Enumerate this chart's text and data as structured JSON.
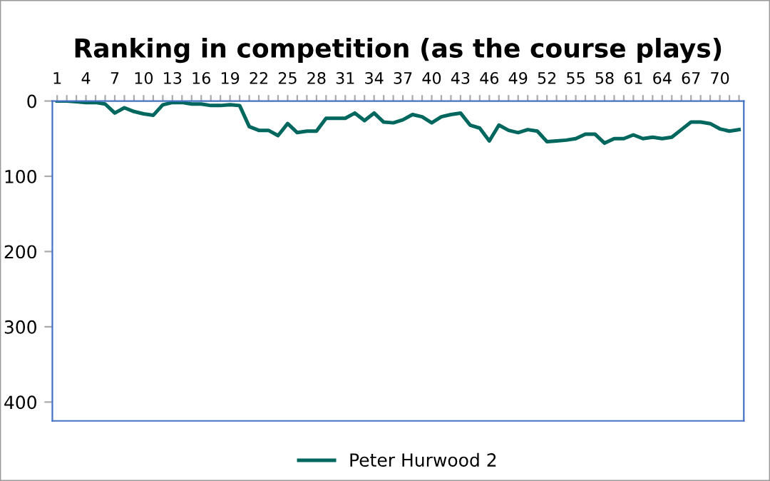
{
  "chart_data": {
    "type": "line",
    "title": "Ranking in competition (as the course plays)",
    "categories": [
      "1",
      null,
      null,
      "4",
      null,
      null,
      "7",
      null,
      null,
      "10",
      null,
      null,
      "13",
      null,
      null,
      "16",
      null,
      null,
      "19",
      null,
      null,
      "22",
      null,
      null,
      "25",
      null,
      null,
      "28",
      null,
      null,
      "31",
      null,
      null,
      "34",
      null,
      null,
      "37",
      null,
      null,
      "40",
      null,
      null,
      "43",
      null,
      null,
      "46",
      null,
      null,
      "49",
      null,
      null,
      "52",
      null,
      null,
      "55",
      null,
      null,
      "58",
      null,
      null,
      "61",
      null,
      null,
      "64",
      null,
      null,
      "67",
      null,
      null,
      "70",
      null,
      null
    ],
    "series": [
      {
        "name": "Peter Hurwood 2",
        "color": "#00675e",
        "values": [
          0,
          0,
          1,
          2,
          2,
          4,
          16,
          9,
          14,
          17,
          19,
          5,
          2,
          2,
          4,
          4,
          6,
          6,
          5,
          6,
          34,
          39,
          39,
          46,
          30,
          42,
          40,
          40,
          23,
          23,
          23,
          16,
          26,
          16,
          28,
          29,
          25,
          18,
          21,
          29,
          21,
          18,
          16,
          32,
          36,
          53,
          32,
          39,
          42,
          38,
          40,
          54,
          53,
          52,
          50,
          44,
          44,
          56,
          50,
          50,
          45,
          50,
          48,
          50,
          48,
          38,
          28,
          28,
          30,
          37,
          40,
          38
        ]
      }
    ],
    "ylim": [
      425,
      0
    ],
    "yticks": [
      0,
      100,
      200,
      300,
      400
    ],
    "grid": false,
    "legend": "bottom",
    "marker": "none",
    "line_style": "solid"
  }
}
